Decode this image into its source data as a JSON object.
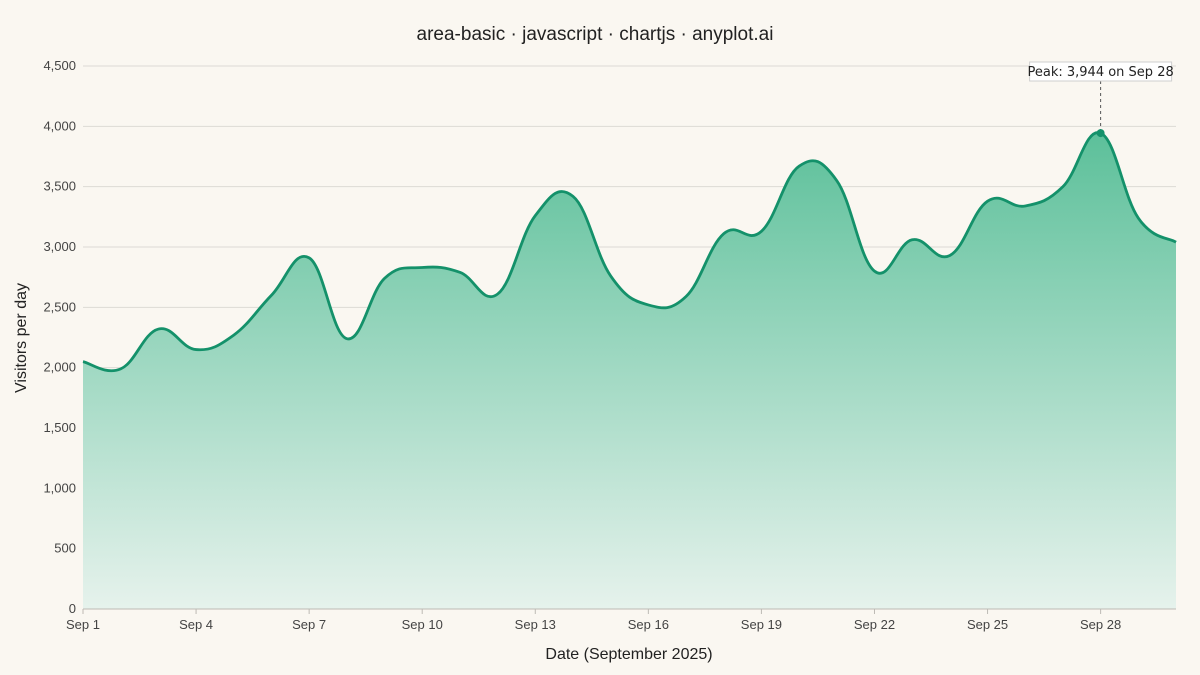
{
  "chart_data": {
    "type": "area",
    "title": "area-basic · javascript · chartjs · anyplot.ai",
    "xlabel": "Date (September 2025)",
    "ylabel": "Visitors per day",
    "ylim": [
      0,
      4500
    ],
    "yticks": [
      0,
      500,
      1000,
      1500,
      2000,
      2500,
      3000,
      3500,
      4000,
      4500
    ],
    "ytick_labels": [
      "0",
      "500",
      "1,000",
      "1,500",
      "2,000",
      "2,500",
      "3,000",
      "3,500",
      "4,000",
      "4,500"
    ],
    "categories": [
      "Sep 1",
      "Sep 2",
      "Sep 3",
      "Sep 4",
      "Sep 5",
      "Sep 6",
      "Sep 7",
      "Sep 8",
      "Sep 9",
      "Sep 10",
      "Sep 11",
      "Sep 12",
      "Sep 13",
      "Sep 14",
      "Sep 15",
      "Sep 16",
      "Sep 17",
      "Sep 18",
      "Sep 19",
      "Sep 20",
      "Sep 21",
      "Sep 22",
      "Sep 23",
      "Sep 24",
      "Sep 25",
      "Sep 26",
      "Sep 27",
      "Sep 28",
      "Sep 29",
      "Sep 30"
    ],
    "xtick_labels": [
      "Sep 1",
      "Sep 4",
      "Sep 7",
      "Sep 10",
      "Sep 13",
      "Sep 16",
      "Sep 19",
      "Sep 22",
      "Sep 25",
      "Sep 28"
    ],
    "series": [
      {
        "values": [
          2050,
          1990,
          2320,
          2150,
          2270,
          2600,
          2910,
          2240,
          2740,
          2830,
          2790,
          2610,
          3260,
          3420,
          2760,
          2520,
          2590,
          3110,
          3130,
          3670,
          3550,
          2800,
          3060,
          2930,
          3380,
          3340,
          3500,
          3944,
          3240,
          3040
        ]
      }
    ],
    "grid": true,
    "legend": "none",
    "annotation": {
      "text": "Peak: 3,944 on Sep 28",
      "index": 27,
      "value": 3944
    },
    "colors": {
      "line": "#14916a",
      "fill_top": "#5cc09a",
      "fill_bottom": "#e6f2ec",
      "background": "#faf7f1"
    }
  }
}
